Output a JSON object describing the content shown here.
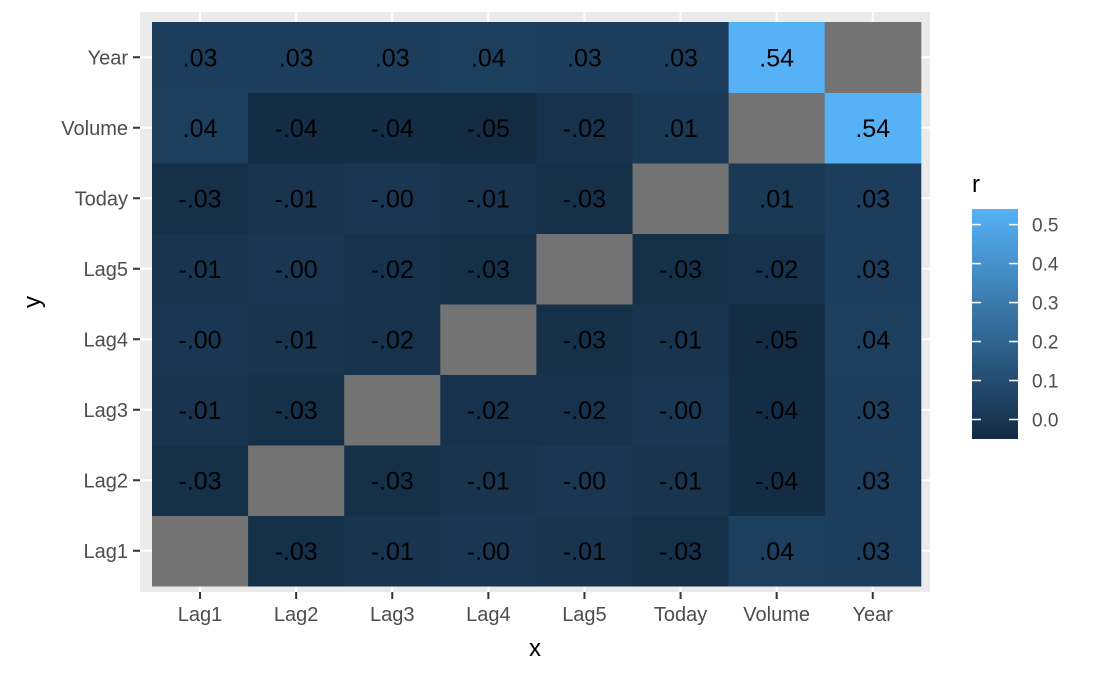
{
  "chart_data": {
    "type": "heatmap",
    "xlabel": "x",
    "ylabel": "y",
    "x_categories": [
      "Lag1",
      "Lag2",
      "Lag3",
      "Lag4",
      "Lag5",
      "Today",
      "Volume",
      "Year"
    ],
    "y_categories": [
      "Lag1",
      "Lag2",
      "Lag3",
      "Lag4",
      "Lag5",
      "Today",
      "Volume",
      "Year"
    ],
    "values": [
      [
        null,
        -0.03,
        -0.01,
        -0.0,
        -0.01,
        -0.03,
        0.04,
        0.03
      ],
      [
        -0.03,
        null,
        -0.03,
        -0.01,
        -0.0,
        -0.01,
        -0.04,
        0.03
      ],
      [
        -0.01,
        -0.03,
        null,
        -0.02,
        -0.02,
        -0.0,
        -0.04,
        0.03
      ],
      [
        -0.0,
        -0.01,
        -0.02,
        null,
        -0.03,
        -0.01,
        -0.05,
        0.04
      ],
      [
        -0.01,
        -0.0,
        -0.02,
        -0.03,
        null,
        -0.03,
        -0.02,
        0.03
      ],
      [
        -0.03,
        -0.01,
        -0.0,
        -0.01,
        -0.03,
        null,
        0.01,
        0.03
      ],
      [
        0.04,
        -0.04,
        -0.04,
        -0.05,
        -0.02,
        0.01,
        null,
        0.54
      ],
      [
        0.03,
        0.03,
        0.03,
        0.04,
        0.03,
        0.03,
        0.54,
        null
      ]
    ],
    "labels": [
      [
        "",
        "-.03",
        "-.01",
        "-.00",
        "-.01",
        "-.03",
        ".04",
        ".03"
      ],
      [
        "-.03",
        "",
        "-.03",
        "-.01",
        "-.00",
        "-.01",
        "-.04",
        ".03"
      ],
      [
        "-.01",
        "-.03",
        "",
        "-.02",
        "-.02",
        "-.00",
        "-.04",
        ".03"
      ],
      [
        "-.00",
        "-.01",
        "-.02",
        "",
        "-.03",
        "-.01",
        "-.05",
        ".04"
      ],
      [
        "-.01",
        "-.00",
        "-.02",
        "-.03",
        "",
        "-.03",
        "-.02",
        ".03"
      ],
      [
        "-.03",
        "-.01",
        "-.00",
        "-.01",
        "-.03",
        "",
        ".01",
        ".03"
      ],
      [
        ".04",
        "-.04",
        "-.04",
        "-.05",
        "-.02",
        ".01",
        "",
        ".54"
      ],
      [
        ".03",
        ".03",
        ".03",
        ".04",
        ".03",
        ".03",
        ".54",
        ""
      ]
    ],
    "na_color": "#737373",
    "color_scale": {
      "low_color": "#132B43",
      "high_color": "#56B1F7",
      "domain": [
        -0.05,
        0.54
      ]
    },
    "legend": {
      "title": "r",
      "ticks": [
        0.0,
        0.1,
        0.2,
        0.3,
        0.4,
        0.5
      ],
      "tick_labels": [
        "0.0",
        "0.1",
        "0.2",
        "0.3",
        "0.4",
        "0.5"
      ],
      "position": "right"
    },
    "panel_background": "#ebebeb",
    "grid": true
  }
}
